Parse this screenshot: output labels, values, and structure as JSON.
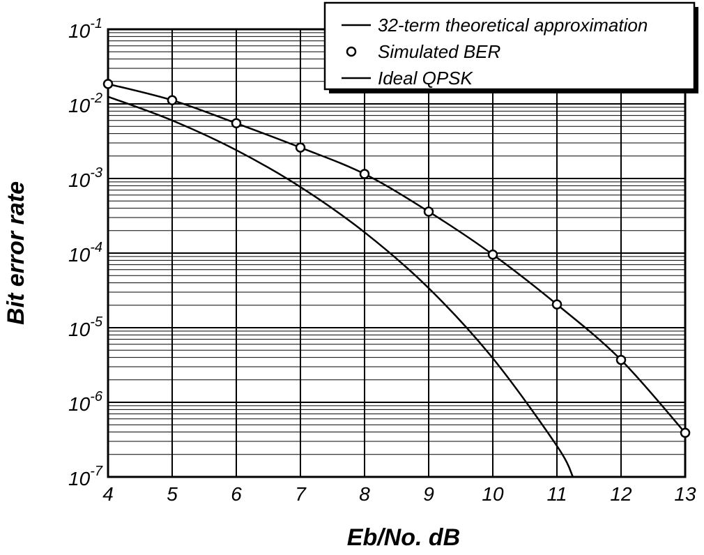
{
  "chart_data": {
    "type": "line",
    "title": "",
    "xlabel": "Eb/No. dB",
    "ylabel": "Bit error rate",
    "x_ticks": [
      "4",
      "5",
      "6",
      "7",
      "8",
      "9",
      "10",
      "11",
      "12",
      "13"
    ],
    "y_ticks": [
      {
        "base": "10",
        "exp": "-1"
      },
      {
        "base": "10",
        "exp": "-2"
      },
      {
        "base": "10",
        "exp": "-3"
      },
      {
        "base": "10",
        "exp": "-4"
      },
      {
        "base": "10",
        "exp": "-5"
      },
      {
        "base": "10",
        "exp": "-6"
      },
      {
        "base": "10",
        "exp": "-7"
      }
    ],
    "xlim": [
      4,
      13
    ],
    "ylim": [
      1e-07,
      0.1
    ],
    "y_scale": "log",
    "grid": true,
    "legend_position": "top-right",
    "legend": [
      {
        "label": "32-term theoretical approximation",
        "marker": "line"
      },
      {
        "label": "Simulated BER",
        "marker": "circle"
      },
      {
        "label": "Ideal QPSK",
        "marker": "line"
      }
    ],
    "series": [
      {
        "name": "32-term theoretical approximation",
        "style": "line",
        "x": [
          4,
          5,
          6,
          7,
          8,
          9,
          10,
          11,
          12,
          13
        ],
        "y": [
          0.0185,
          0.0112,
          0.0055,
          0.0026,
          0.00115,
          0.00036,
          9.55e-05,
          2.05e-05,
          3.7e-06,
          3.9e-07
        ]
      },
      {
        "name": "Simulated BER",
        "style": "markers",
        "x": [
          4,
          5,
          6,
          7,
          8,
          9,
          10,
          11,
          12,
          13
        ],
        "y": [
          0.0185,
          0.0112,
          0.0055,
          0.0026,
          0.00115,
          0.00036,
          9.55e-05,
          2.05e-05,
          3.7e-06,
          3.9e-07
        ]
      },
      {
        "name": "Ideal QPSK",
        "style": "line",
        "x": [
          4,
          5,
          6,
          7,
          8,
          9,
          10,
          11,
          11.25
        ],
        "y": [
          0.0125,
          0.006,
          0.0024,
          0.00077,
          0.00019,
          3.39e-05,
          3.9e-06,
          2.6e-07,
          1e-07
        ]
      }
    ]
  }
}
